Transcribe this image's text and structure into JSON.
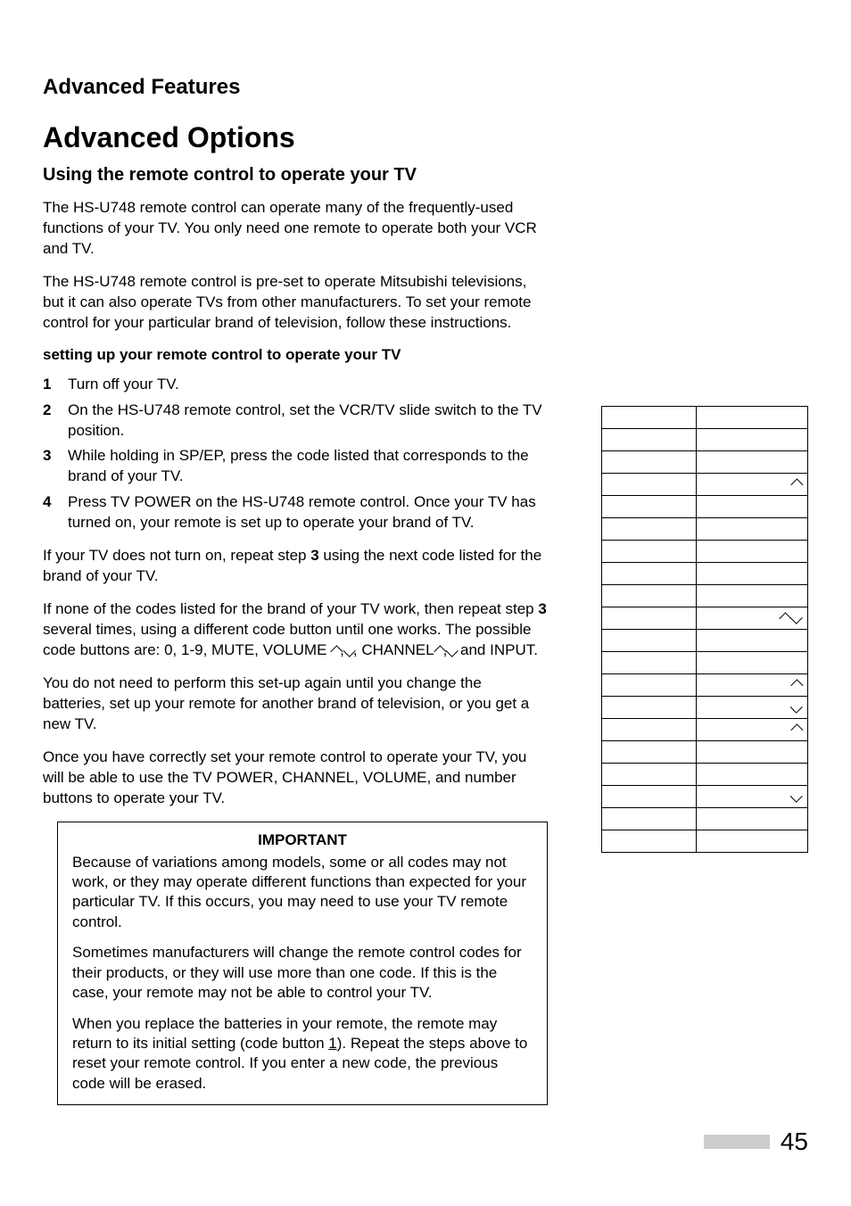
{
  "section_title": "Advanced Features",
  "page_title": "Advanced Options",
  "subsection_title": "Using the remote control to operate your TV",
  "intro_p1": "The HS-U748 remote control can operate many of the frequently-used functions of your TV.  You only need one remote to operate both your VCR and TV.",
  "intro_p2": "The HS-U748 remote control is pre-set to operate Mitsubishi televisions, but it can also operate TVs from other manufacturers.  To set your remote control for your particular brand of television, follow these instructions.",
  "setup_heading": "setting up your remote control to operate your TV",
  "steps": [
    "Turn off your TV.",
    "On the HS-U748 remote control, set the VCR/TV slide switch to the TV position.",
    "While holding in SP/EP, press the code listed that corresponds to the brand of your TV.",
    "Press TV POWER on the HS-U748 remote control.  Once your TV has turned on, your remote is set up to operate your brand of TV."
  ],
  "after_steps_p1_a": "If your TV does not turn on, repeat step ",
  "after_steps_p1_bold": "3",
  "after_steps_p1_b": " using the next code listed for the brand of your TV.",
  "after_steps_p2_a": "If none of the codes listed for the brand of your TV work, then repeat step ",
  "after_steps_p2_bold": "3",
  "after_steps_p2_b": " several times, using a different code button until one works.  The possible code buttons are: 0, 1-9, MUTE, VOLUME ",
  "after_steps_p2_c": ", CHANNEL",
  "after_steps_p2_d": " and INPUT.",
  "after_steps_p3": "You do not need to perform this set-up again until you change the batteries, set up your remote for another brand of television, or you get a new TV.",
  "after_steps_p4": "Once you have correctly set your remote control to operate your TV, you will be able to use the TV POWER, CHANNEL, VOLUME, and number buttons to operate your TV.",
  "important_title": "IMPORTANT",
  "important_p1": "Because of variations among models, some or all codes may not work, or they may operate different functions than expected for your particular TV.  If this occurs, you may need to use your TV remote control.",
  "important_p2": "Sometimes manufacturers will change the remote control codes for their products, or they will use more than one code.  If this is the case, your remote may not be able to control your TV.",
  "important_p3_a": "When you replace the batteries in your remote, the remote may return to its initial setting (code button ",
  "important_p3_u": "1",
  "important_p3_b": ").  Repeat the steps above to reset your remote control.  If you enter a new code, the previous code will be erased.",
  "table_rows": [
    {
      "brand": "",
      "code": "",
      "arrow": "none"
    },
    {
      "brand": "",
      "code": "",
      "arrow": "none"
    },
    {
      "brand": "",
      "code": "",
      "arrow": "none"
    },
    {
      "brand": "",
      "code": "",
      "arrow": "up"
    },
    {
      "brand": "",
      "code": "",
      "arrow": "none"
    },
    {
      "brand": "",
      "code": "",
      "arrow": "none"
    },
    {
      "brand": "",
      "code": "",
      "arrow": "none"
    },
    {
      "brand": "",
      "code": "",
      "arrow": "none"
    },
    {
      "brand": "",
      "code": "",
      "arrow": "none"
    },
    {
      "brand": "",
      "code": "",
      "arrow": "updown"
    },
    {
      "brand": "",
      "code": "",
      "arrow": "none"
    },
    {
      "brand": "",
      "code": "",
      "arrow": "none"
    },
    {
      "brand": "",
      "code": "",
      "arrow": "up"
    },
    {
      "brand": "",
      "code": "",
      "arrow": "down"
    },
    {
      "brand": "",
      "code": "",
      "arrow": "up"
    },
    {
      "brand": "",
      "code": "",
      "arrow": "none"
    },
    {
      "brand": "",
      "code": "",
      "arrow": "none"
    },
    {
      "brand": "",
      "code": "",
      "arrow": "down"
    },
    {
      "brand": "",
      "code": "",
      "arrow": "none"
    },
    {
      "brand": "",
      "code": "",
      "arrow": "none"
    }
  ],
  "page_number": "45"
}
